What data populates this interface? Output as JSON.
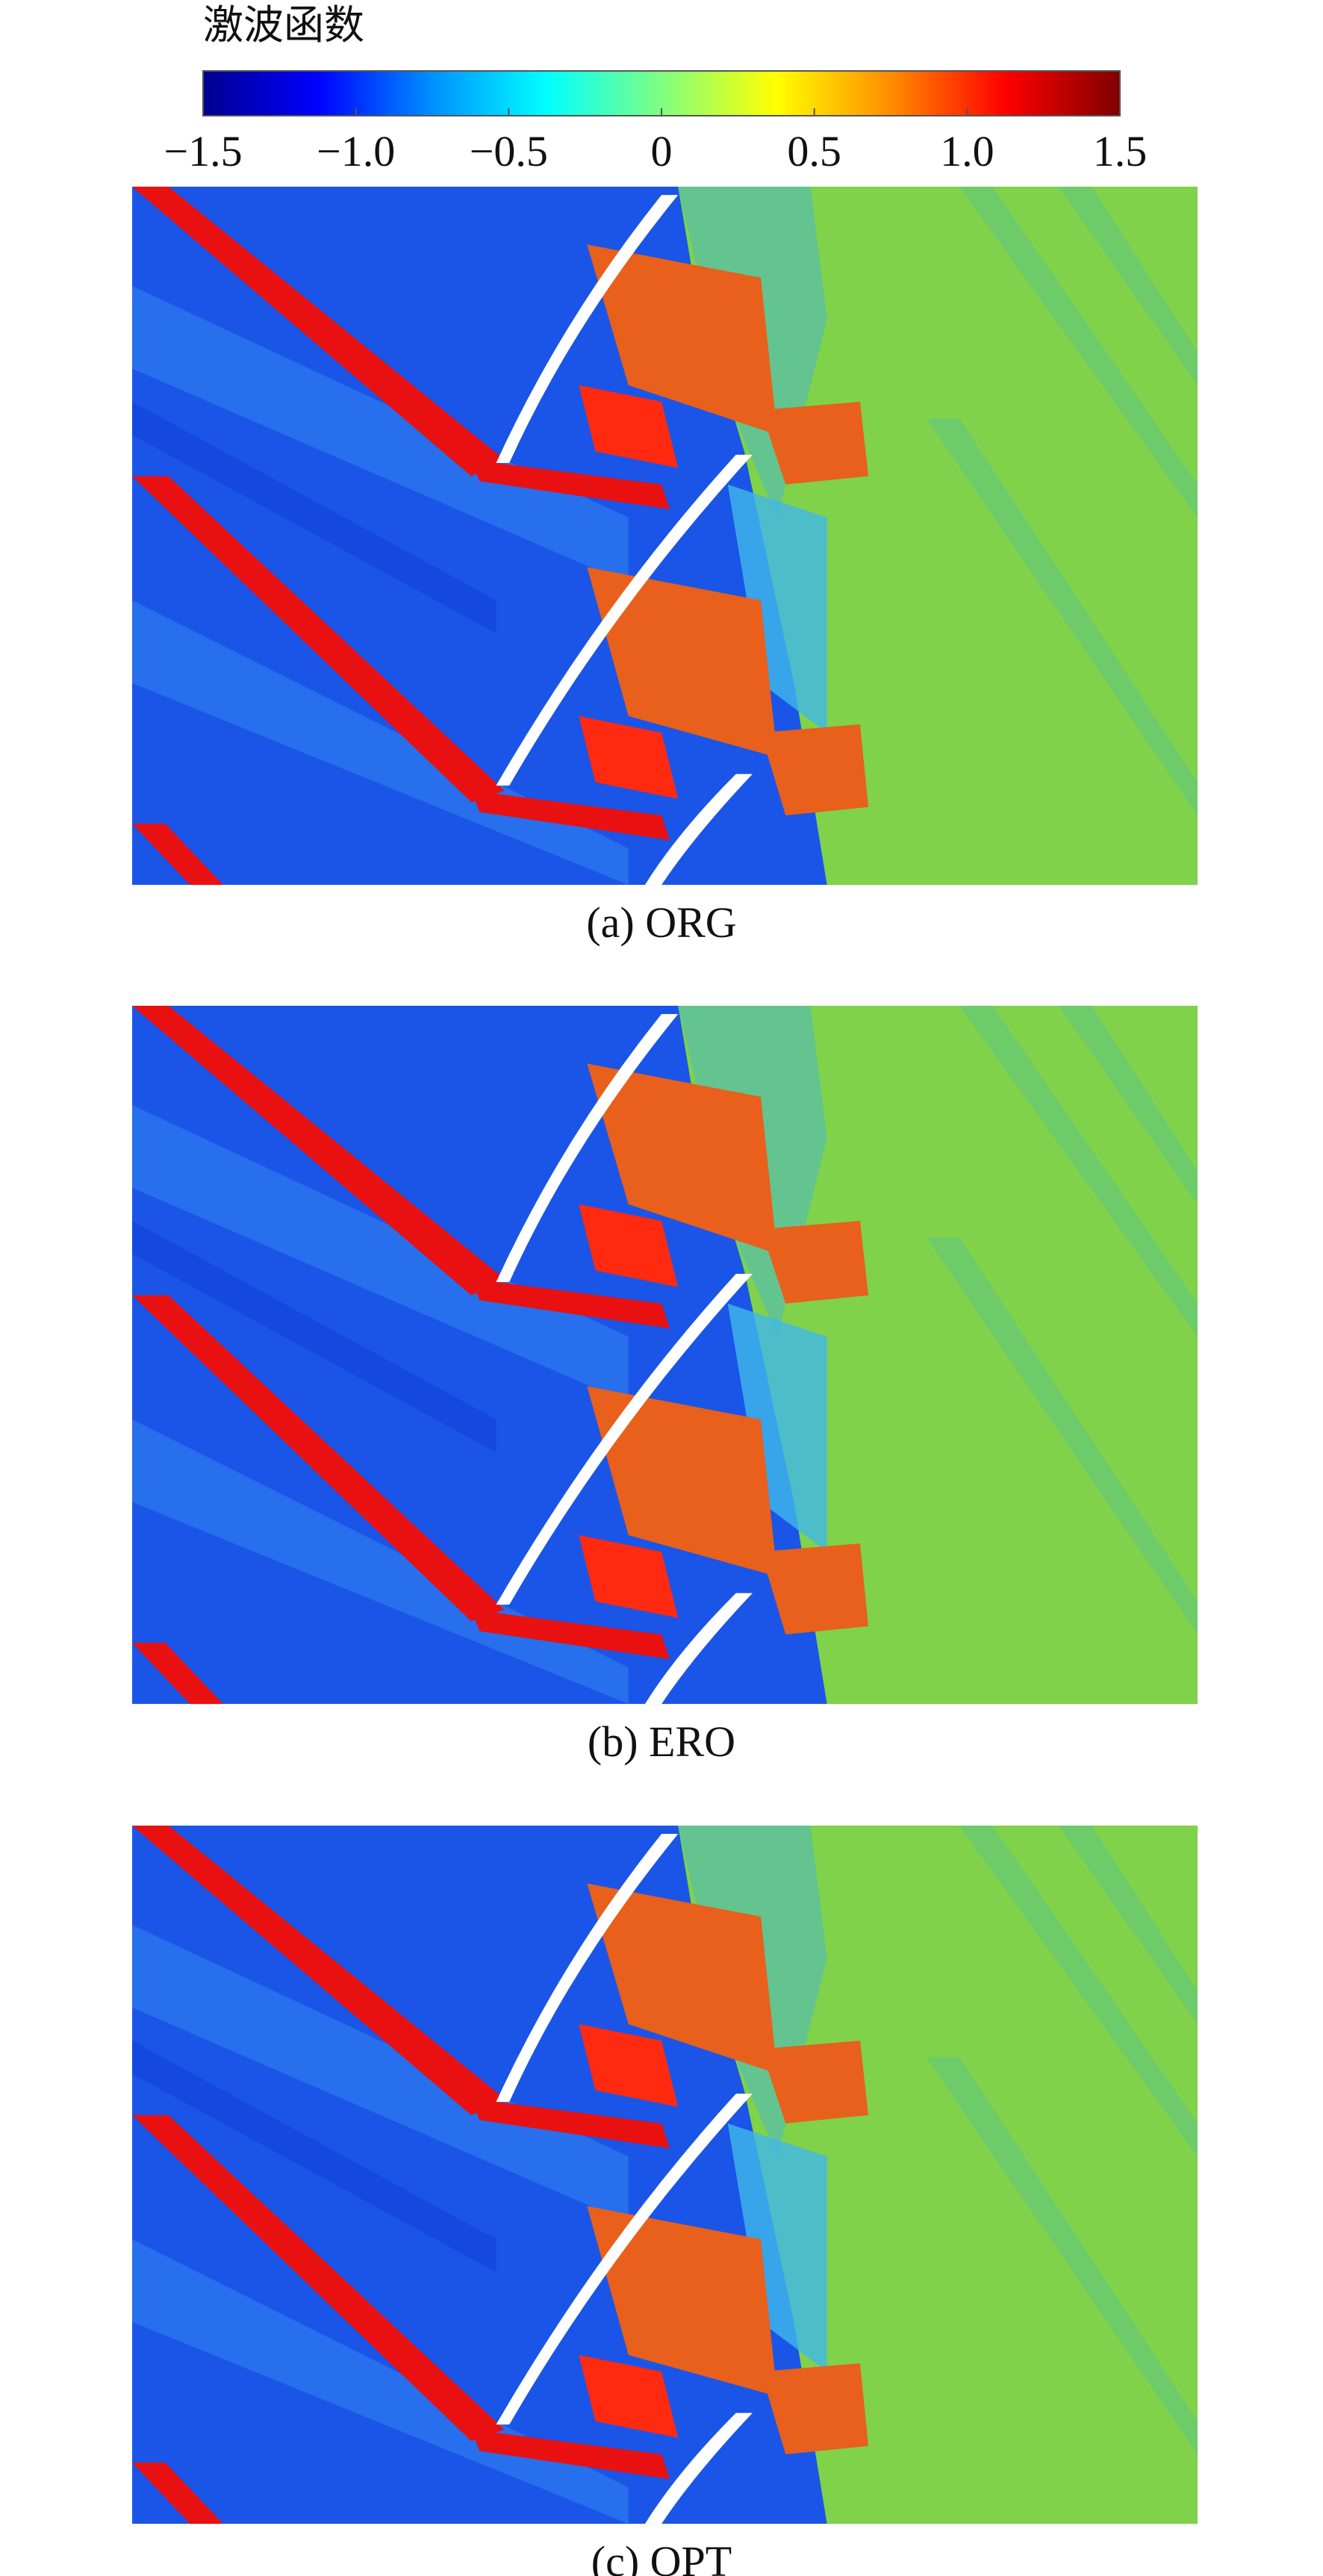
{
  "chart_data": {
    "type": "colorbar",
    "title": "激波函数",
    "clim": [
      -1.5,
      1.5
    ],
    "colormap": [
      "#00008f",
      "#0000ff",
      "#0090ff",
      "#00ffff",
      "#80ff80",
      "#ffff00",
      "#ff8c00",
      "#ff0000",
      "#800000"
    ],
    "ticks": [
      {
        "value": -1.5,
        "label": "−1.5"
      },
      {
        "value": -1.0,
        "label": "−1.0"
      },
      {
        "value": -0.5,
        "label": "−0.5"
      },
      0,
      0.5,
      {
        "value": 1.0,
        "label": "1.0"
      },
      1.5
    ]
  },
  "panels": [
    {
      "caption": "(a) ORG"
    },
    {
      "caption": "(b) ERO"
    },
    {
      "caption": "(c) OPT"
    }
  ]
}
